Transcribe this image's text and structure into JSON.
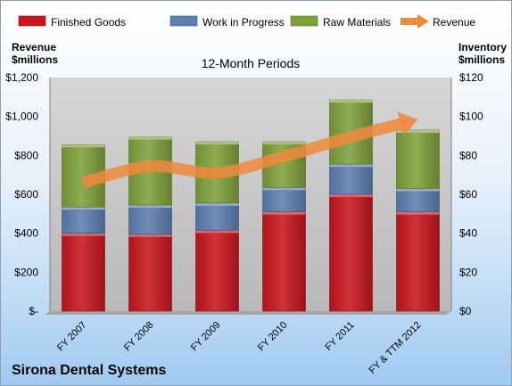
{
  "colors": {
    "finished_goods": "#c8171e",
    "work_in_progress": "#5d7fb0",
    "raw_materials": "#7fa13a",
    "revenue": "#ee8a3c",
    "plot_bg": "#c9c9c9"
  },
  "left_axis_title": [
    "Revenue",
    "$millions"
  ],
  "right_axis_title": [
    "Inventory",
    "$millions"
  ],
  "company": "Sirona Dental Systems",
  "chart_data": {
    "type": "bar",
    "stacked": true,
    "title": "12-Month Periods",
    "categories": [
      "FY 2007",
      "FY 2008",
      "FY 2009",
      "FY 2010",
      "FY 2011",
      "FY & TTM 2012"
    ],
    "series": [
      {
        "name": "Finished Goods",
        "axis": "right",
        "values": [
          40,
          39.5,
          41.5,
          51,
          60,
          51
        ]
      },
      {
        "name": "Work in Progress",
        "axis": "right",
        "values": [
          13.5,
          15,
          14,
          12.5,
          15.5,
          12
        ]
      },
      {
        "name": "Raw Materials",
        "axis": "right",
        "values": [
          32,
          35,
          31.5,
          23.5,
          33,
          30
        ]
      }
    ],
    "line_series": {
      "name": "Revenue",
      "axis": "left",
      "values": [
        660,
        745,
        710,
        795,
        895,
        985
      ]
    },
    "ylim_left": [
      0,
      1200
    ],
    "yticks_left": [
      "$-",
      "$200",
      "$400",
      "$600",
      "$800",
      "$1,000",
      "$1,200"
    ],
    "ylim_right": [
      0,
      120
    ],
    "yticks_right": [
      "$0",
      "$20",
      "$40",
      "$60",
      "$80",
      "$100",
      "$120"
    ],
    "legend": [
      "Finished Goods",
      "Work in Progress",
      "Raw Materials",
      "Revenue"
    ],
    "legend_position": "top",
    "grid": false
  }
}
